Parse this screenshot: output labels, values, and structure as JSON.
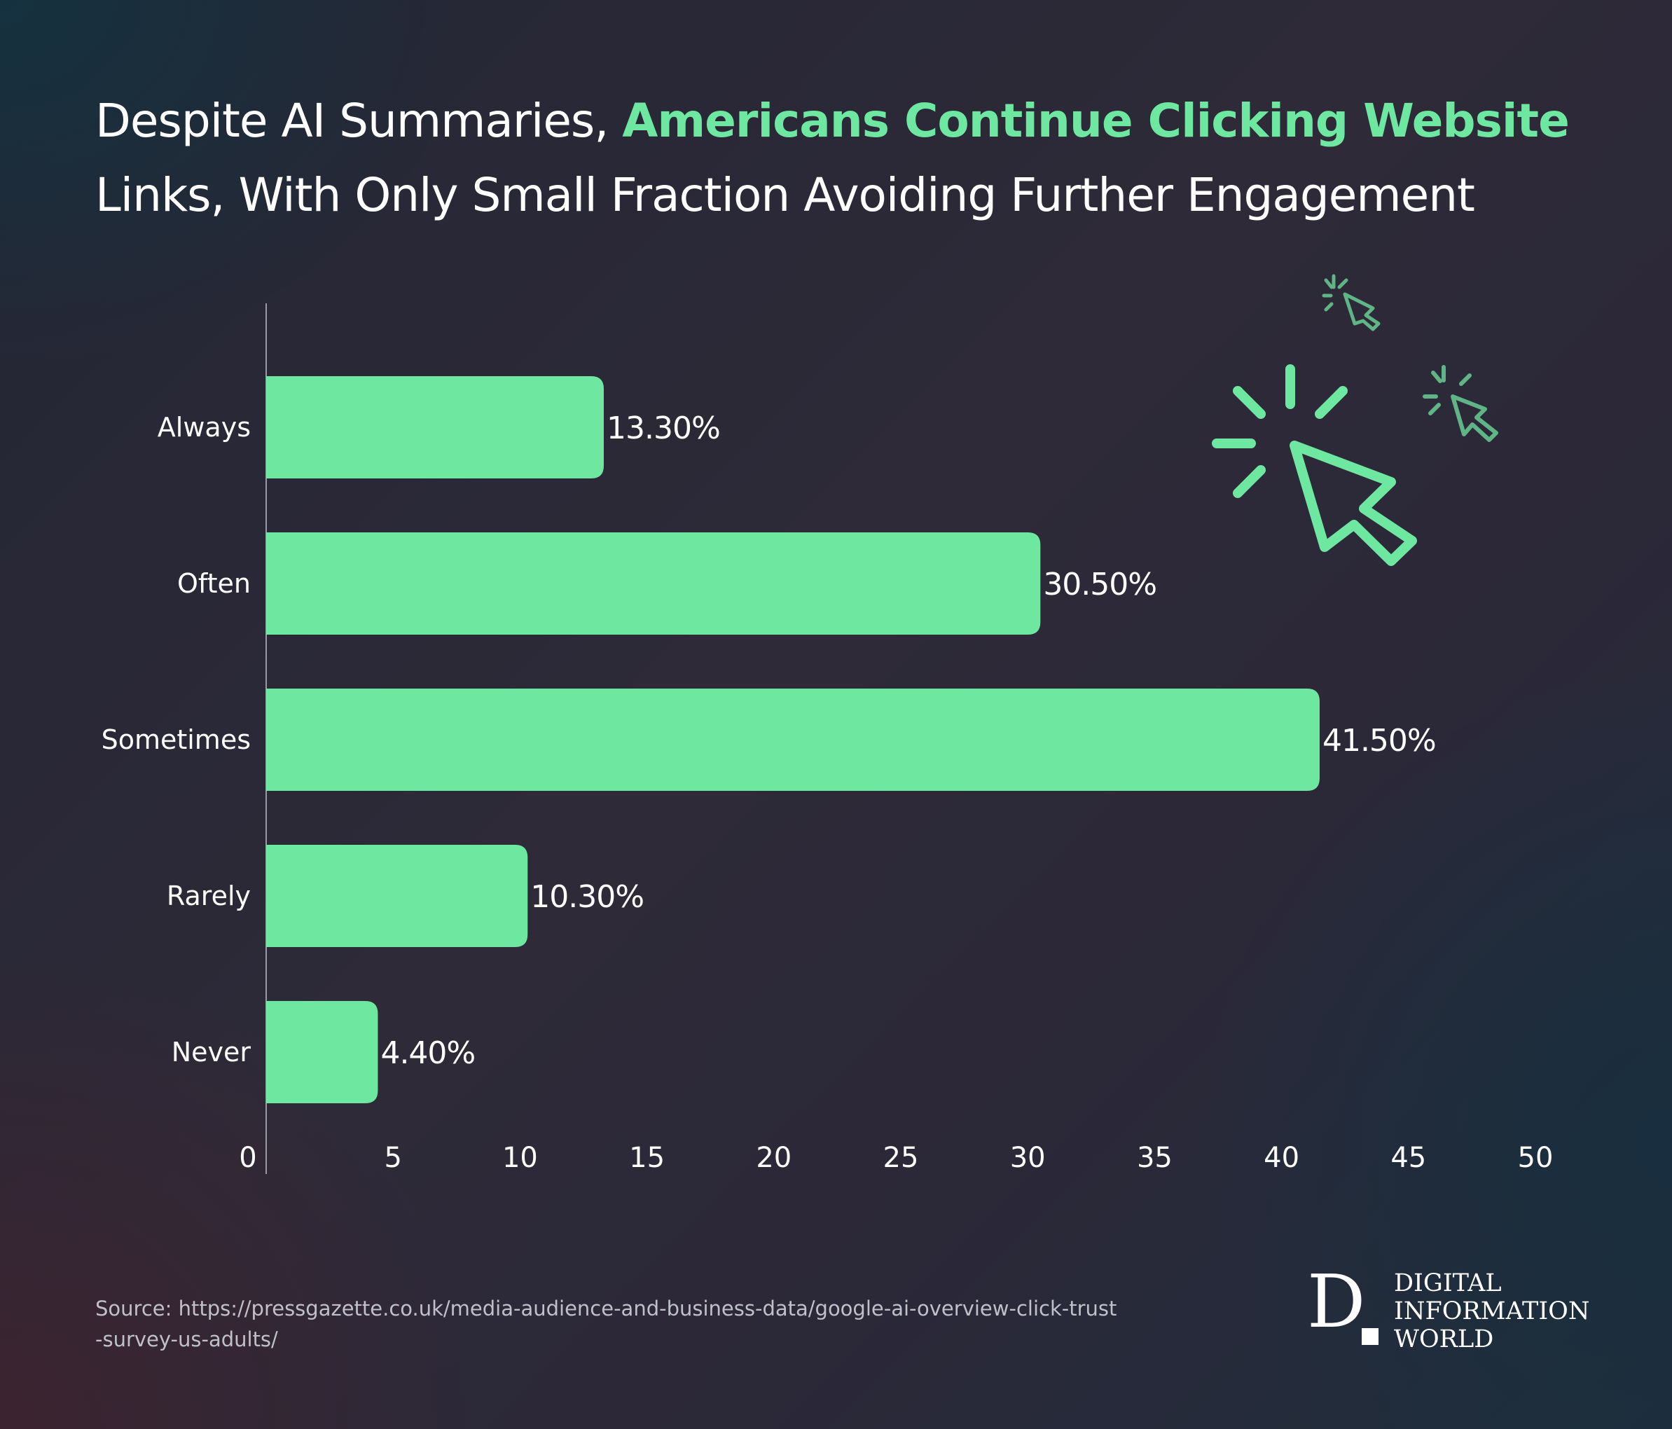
{
  "title": {
    "part1": "Despite AI Summaries, ",
    "highlight": "Americans Continue Clicking Website",
    "part2": "Links, With Only Small Fraction Avoiding Further Engagement"
  },
  "colors": {
    "accent": "#6ee7a0",
    "text": "#ffffff",
    "axis": "#9a9aa6"
  },
  "icon": "cursor-click-icon",
  "chart_data": {
    "type": "bar",
    "orientation": "horizontal",
    "categories": [
      "Always",
      "Often",
      "Sometimes",
      "Rarely",
      "Never"
    ],
    "values": [
      13.3,
      30.5,
      41.5,
      10.3,
      4.4
    ],
    "value_labels": [
      "13.30%",
      "30.50%",
      "41.50%",
      "10.30%",
      "4.40%"
    ],
    "xlim": [
      0,
      50
    ],
    "x_ticks": [
      "0",
      "5",
      "10",
      "15",
      "20",
      "25",
      "30",
      "35",
      "40",
      "45",
      "50"
    ],
    "grid": false,
    "legend": "none"
  },
  "source": "Source: https://pressgazette.co.uk/media-audience-and-business-data/google-ai-overview-click-trust-survey-us-adults/",
  "logo": {
    "letter": "D",
    "lines": [
      "DIGITAL",
      "INFORMATION",
      "WORLD"
    ]
  }
}
